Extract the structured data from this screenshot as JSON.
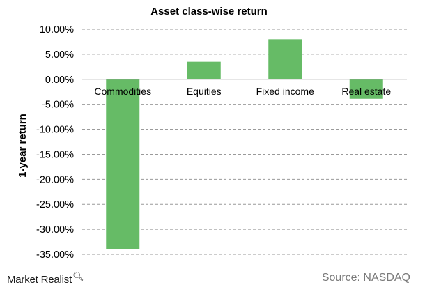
{
  "chart_data": {
    "type": "bar",
    "title": "Asset class-wise return",
    "xlabel": "",
    "ylabel": "1-year return",
    "categories": [
      "Commodities",
      "Equities",
      "Fixed income",
      "Real estate"
    ],
    "values": [
      -34.0,
      3.5,
      8.0,
      -3.9
    ],
    "unit": "%",
    "ylim": [
      -35,
      10
    ],
    "yticks": [
      "10.00%",
      "5.00%",
      "0.00%",
      "-5.00%",
      "-10.00%",
      "-15.00%",
      "-20.00%",
      "-25.00%",
      "-30.00%",
      "-35.00%"
    ],
    "grid": true,
    "bar_color": "#66bb66"
  },
  "branding": {
    "logo_text": "Market Realist",
    "logo_icon": "magnifier-icon"
  },
  "source": "Source:  NASDAQ"
}
